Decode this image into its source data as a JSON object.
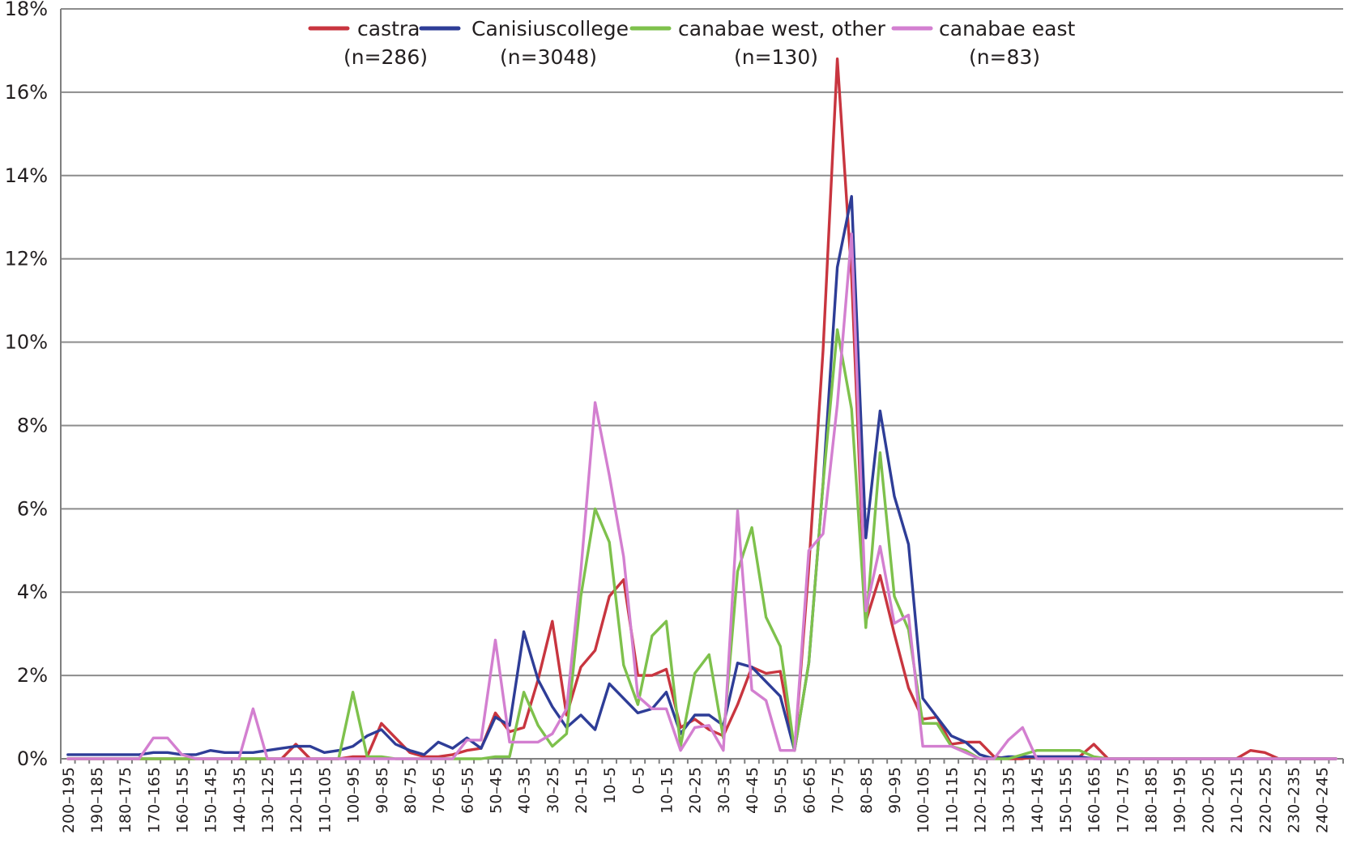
{
  "chart_data": {
    "type": "line",
    "title": "",
    "xlabel": "",
    "ylabel": "",
    "ylim": [
      0,
      18
    ],
    "yticks": [
      0,
      2,
      4,
      6,
      8,
      10,
      12,
      14,
      16,
      18
    ],
    "ytick_labels": [
      "0%",
      "2%",
      "4%",
      "6%",
      "8%",
      "10%",
      "12%",
      "14%",
      "16%",
      "18%"
    ],
    "grid": true,
    "legend_position": "top",
    "x": [
      "200–195",
      "195–190",
      "190–185",
      "185–180",
      "180–175",
      "175–170",
      "170–165",
      "165–160",
      "160–155",
      "155–150",
      "150–145",
      "145–140",
      "140–135",
      "135–130",
      "130–125",
      "125–120",
      "120–115",
      "115–110",
      "110–105",
      "105–100",
      "100–95",
      "95–90",
      "90–85",
      "85–80",
      "80–75",
      "75–70",
      "70–65",
      "65–60",
      "60–55",
      "55–50",
      "50–45",
      "45–40",
      "40–35",
      "35–30",
      "30–25",
      "25–20",
      "20–15",
      "15–10",
      "10–5",
      "5–0",
      "0–5",
      "5–10",
      "10–15",
      "15–20",
      "20–25",
      "25–30",
      "30–35",
      "35–40",
      "40–45",
      "45–50",
      "50–55",
      "55–60",
      "60–65",
      "65–70",
      "70–75",
      "75–80",
      "80–85",
      "85–90",
      "90–95",
      "95–100",
      "100–105",
      "105–110",
      "110–115",
      "115–120",
      "120–125",
      "125–130",
      "130–135",
      "135–140",
      "140–145",
      "145–150",
      "150–155",
      "155–160",
      "160–165",
      "165–170",
      "170–175",
      "175–180",
      "180–185",
      "185–190",
      "190–195",
      "195–200",
      "200–205",
      "205–210",
      "210–215",
      "215–220",
      "220–225",
      "225–230",
      "230–235",
      "235–240",
      "240–245",
      "245–250"
    ],
    "x_tick_labels": [
      "200–195",
      "190–185",
      "180–175",
      "170–165",
      "160–155",
      "150–145",
      "140–135",
      "130–125",
      "120–115",
      "110–105",
      "100–95",
      "90–85",
      "80–75",
      "70–65",
      "60–55",
      "50–45",
      "40–35",
      "30–25",
      "20–15",
      "10–5",
      "0–5",
      "10–15",
      "20–25",
      "30–35",
      "40–45",
      "50–55",
      "60–65",
      "70–75",
      "80–85",
      "90–95",
      "100–105",
      "110–115",
      "120–125",
      "130–135",
      "140–145",
      "150–155",
      "160–165",
      "170–175",
      "180–185",
      "190–195",
      "200–205",
      "210–215",
      "220–225",
      "230–235",
      "240–245"
    ],
    "series": [
      {
        "name": "castra",
        "n_label": "(n=286)",
        "color": "#c8353f",
        "values": [
          0,
          0,
          0,
          0,
          0,
          0,
          0,
          0,
          0,
          0,
          0,
          0,
          0,
          0,
          0,
          0,
          0.35,
          0,
          0,
          0,
          0.05,
          0.05,
          0.85,
          0.5,
          0.15,
          0.05,
          0.05,
          0.1,
          0.2,
          0.25,
          1.1,
          0.65,
          0.75,
          1.9,
          3.3,
          1.05,
          2.2,
          2.6,
          3.9,
          4.3,
          2.0,
          2.0,
          2.15,
          0.75,
          0.95,
          0.7,
          0.55,
          1.3,
          2.2,
          2.05,
          2.1,
          0.2,
          4.6,
          9.8,
          16.8,
          11.6,
          3.3,
          4.4,
          3.0,
          1.7,
          0.95,
          1.0,
          0.35,
          0.4,
          0.4,
          0.05,
          0,
          0,
          0.05,
          0.05,
          0.05,
          0.05,
          0.35,
          0,
          0,
          0,
          0,
          0,
          0,
          0,
          0,
          0,
          0,
          0.2,
          0.15,
          0,
          0,
          0,
          0,
          0
        ]
      },
      {
        "name": "Canisiuscollege",
        "n_label": "(n=3048)",
        "color": "#2e3d97",
        "values": [
          0.1,
          0.1,
          0.1,
          0.1,
          0.1,
          0.1,
          0.15,
          0.15,
          0.1,
          0.1,
          0.2,
          0.15,
          0.15,
          0.15,
          0.2,
          0.25,
          0.3,
          0.3,
          0.15,
          0.2,
          0.3,
          0.55,
          0.7,
          0.35,
          0.2,
          0.1,
          0.4,
          0.25,
          0.5,
          0.25,
          1.0,
          0.8,
          3.05,
          1.9,
          1.25,
          0.75,
          1.05,
          0.7,
          1.8,
          1.45,
          1.1,
          1.2,
          1.6,
          0.6,
          1.05,
          1.05,
          0.8,
          2.3,
          2.2,
          1.85,
          1.5,
          0.2,
          2.3,
          6.6,
          11.8,
          13.5,
          5.3,
          8.35,
          6.3,
          5.15,
          1.45,
          1.0,
          0.55,
          0.4,
          0.1,
          0,
          0.05,
          0.05,
          0.05,
          0.05,
          0.05,
          0.05,
          0,
          0,
          0,
          0,
          0,
          0,
          0,
          0,
          0,
          0,
          0,
          0,
          0,
          0,
          0,
          0,
          0,
          0
        ]
      },
      {
        "name": "canabae west, other",
        "n_label": "(n=130)",
        "color": "#7ec14c",
        "values": [
          0,
          0,
          0,
          0,
          0,
          0,
          0,
          0,
          0,
          0,
          0,
          0,
          0,
          0,
          0,
          0,
          0,
          0,
          0,
          0,
          1.6,
          0.05,
          0.05,
          0,
          0,
          0,
          0,
          0,
          0,
          0,
          0.05,
          0.05,
          1.6,
          0.8,
          0.3,
          0.6,
          3.9,
          6.0,
          5.2,
          2.25,
          1.3,
          2.95,
          3.3,
          0.3,
          2.05,
          2.5,
          0.5,
          4.5,
          5.55,
          3.4,
          2.7,
          0.2,
          2.3,
          6.6,
          10.3,
          8.4,
          3.15,
          7.35,
          3.9,
          3.1,
          0.85,
          0.85,
          0.3,
          0.2,
          0,
          0,
          0,
          0.1,
          0.2,
          0.2,
          0.2,
          0.2,
          0.05,
          0,
          0,
          0,
          0,
          0,
          0,
          0,
          0,
          0,
          0,
          0,
          0,
          0,
          0,
          0,
          0,
          0
        ]
      },
      {
        "name": "canabae east",
        "n_label": "(n=83)",
        "color": "#d37fd0",
        "values": [
          0,
          0,
          0,
          0,
          0,
          0,
          0.5,
          0.5,
          0.1,
          0,
          0,
          0,
          0,
          1.2,
          0,
          0,
          0,
          0,
          0,
          0,
          0,
          0,
          0,
          0,
          0,
          0,
          0,
          0,
          0.45,
          0.45,
          2.85,
          0.4,
          0.4,
          0.4,
          0.6,
          1.2,
          4.5,
          8.55,
          6.8,
          4.85,
          1.5,
          1.2,
          1.2,
          0.2,
          0.75,
          0.8,
          0.2,
          5.95,
          1.65,
          1.4,
          0.2,
          0.2,
          5.0,
          5.4,
          8.5,
          12.6,
          3.55,
          5.1,
          3.25,
          3.45,
          0.3,
          0.3,
          0.3,
          0.15,
          0,
          0,
          0.45,
          0.75,
          0,
          0,
          0,
          0,
          0,
          0,
          0,
          0,
          0,
          0,
          0,
          0,
          0,
          0,
          0,
          0,
          0,
          0,
          0,
          0,
          0,
          0
        ]
      }
    ]
  }
}
